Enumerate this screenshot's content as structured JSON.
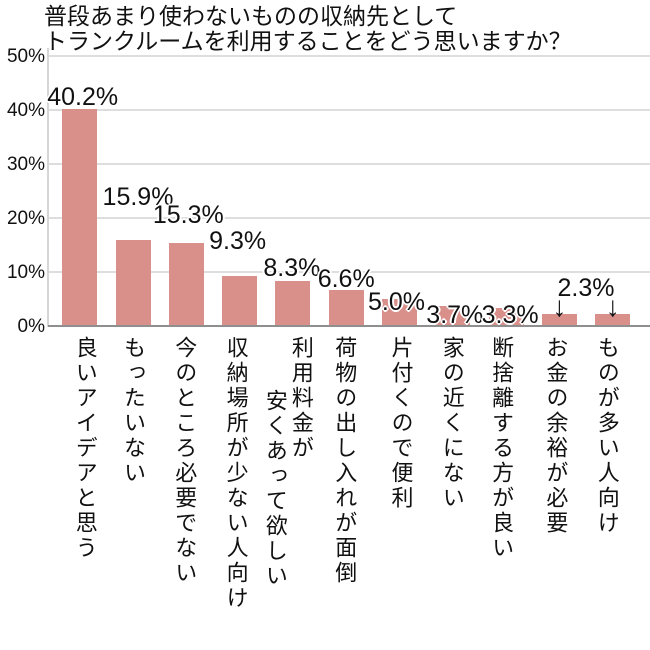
{
  "title": {
    "line1": "普段あまり使わないものの収納先として",
    "line2": "トランクルームを利用することをどう思いますか？"
  },
  "chart_data": {
    "type": "bar",
    "title": "普段あまり使わないものの収納先としてトランクルームを利用することをどう思いますか？",
    "categories": [
      "良いアイデアと思う",
      "もったいない",
      "今のところ必要でない",
      "収納場所が少ない人向け",
      "利用料金が\n安くあって欲しい",
      "荷物の出し入れが面倒",
      "片付くので便利",
      "家の近くにない",
      "断捨離する方が良い",
      "お金の余裕が必要",
      "ものが多い人向け"
    ],
    "values": [
      40.2,
      15.9,
      15.3,
      9.3,
      8.3,
      6.6,
      5.0,
      3.7,
      3.3,
      2.3,
      2.3
    ],
    "data_labels": [
      "40.2%",
      "15.9%",
      "15.3%",
      "9.3%",
      "8.3%",
      "6.6%",
      "5.0%",
      "3.7%",
      "3.3%",
      "2.3%",
      "2.3%"
    ],
    "shared_label": {
      "text": "2.3%",
      "applies_to": [
        "お金の余裕が必要",
        "ものが多い人向け"
      ],
      "arrow_glyph": "↓"
    },
    "xlabel": "",
    "ylabel": "",
    "ylim": [
      0,
      50
    ],
    "yticks": [
      "0%",
      "10%",
      "20%",
      "30%",
      "40%",
      "50%"
    ],
    "grid": true,
    "legend": false,
    "bar_color": "#d98f8a",
    "gridline_color": "#dedede",
    "axis_color": "#8f8f8f",
    "text_color": "#111111"
  }
}
